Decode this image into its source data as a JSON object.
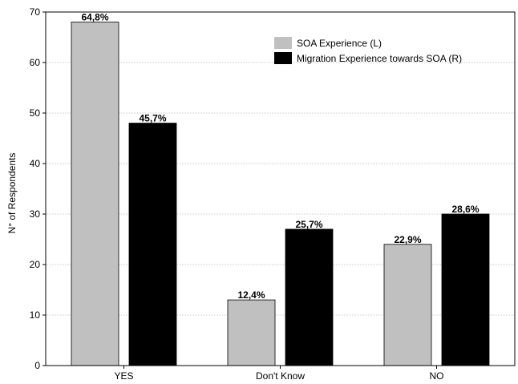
{
  "chart_data": {
    "type": "bar",
    "title": "",
    "xlabel": "",
    "ylabel": "N° of Respondents",
    "ylim": [
      0,
      70
    ],
    "yticks": [
      0,
      10,
      20,
      30,
      40,
      50,
      60,
      70
    ],
    "grid": true,
    "legend_position": "top-right",
    "categories": [
      "YES",
      "Don't Know",
      "NO"
    ],
    "series": [
      {
        "name": "SOA Experience (L)",
        "color": "#c0c0c0",
        "values": [
          68,
          13,
          24
        ],
        "labels": [
          "64,8%",
          "12,4%",
          "22,9%"
        ]
      },
      {
        "name": "Migration Experience towards SOA (R)",
        "color": "#000000",
        "values": [
          48,
          27,
          30
        ],
        "labels": [
          "45,7%",
          "25,7%",
          "28,6%"
        ]
      }
    ]
  }
}
